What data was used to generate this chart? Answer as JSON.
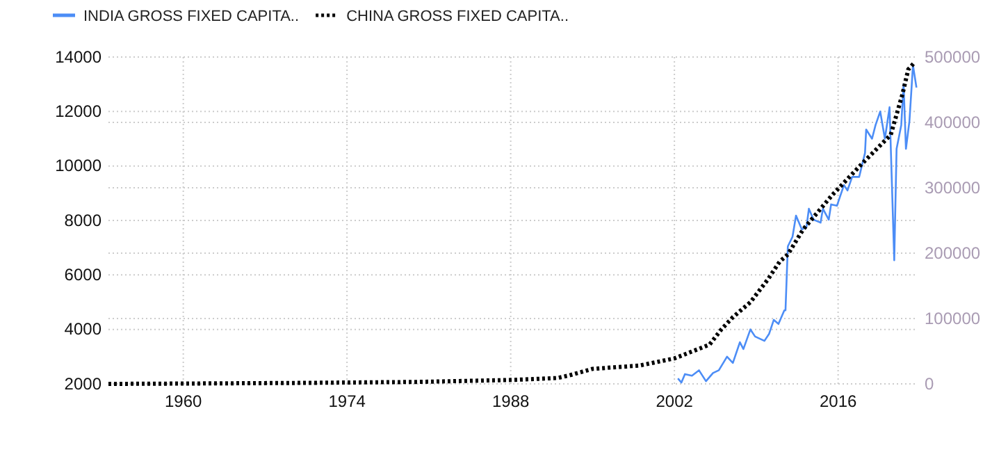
{
  "chart_data": {
    "type": "line",
    "xlim": [
      1953.6,
      2022.8
    ],
    "xticks": [
      1960,
      1974,
      1988,
      2002,
      2016
    ],
    "ylim": [
      2000,
      14000
    ],
    "yticks": [
      2000,
      4000,
      6000,
      8000,
      10000,
      12000,
      14000
    ],
    "y2lim": [
      0,
      500000
    ],
    "y2ticks": [
      0,
      100000,
      200000,
      300000,
      400000,
      500000
    ],
    "grid": true,
    "legend": "top left",
    "series": [
      {
        "name": "INDIA GROSS FIXED CAPITA..",
        "color": "#4c8df6",
        "line_style": "solid",
        "x": [
          2002.3,
          2002.6,
          2002.9,
          2003.5,
          2004.1,
          2004.7,
          2005.3,
          2005.8,
          2006.5,
          2007.0,
          2007.6,
          2007.9,
          2008.5,
          2008.9,
          2009.7,
          2010.1,
          2010.5,
          2010.9,
          2011.4,
          2011.5,
          2011.7,
          2012.1,
          2012.4,
          2012.9,
          2013.3,
          2013.5,
          2013.9,
          2014.5,
          2014.7,
          2015.2,
          2015.4,
          2015.9,
          2016.5,
          2016.8,
          2017.2,
          2017.8,
          2018.3,
          2018.4,
          2018.9,
          2019.2,
          2019.6,
          2020.0,
          2020.4,
          2020.8,
          2021.0,
          2021.4,
          2021.6,
          2021.8,
          2022.1,
          2022.3,
          2022.4,
          2022.7
        ],
        "values": [
          2200,
          2050,
          2360,
          2300,
          2500,
          2100,
          2400,
          2500,
          3000,
          2770,
          3530,
          3280,
          4000,
          3740,
          3580,
          3840,
          4350,
          4200,
          4700,
          4700,
          7050,
          7400,
          8180,
          7670,
          7770,
          8430,
          8030,
          7920,
          8430,
          8030,
          8590,
          8540,
          9300,
          9100,
          9600,
          9600,
          10480,
          11340,
          11000,
          11500,
          12000,
          11000,
          12160,
          6540,
          10630,
          11500,
          13000,
          10630,
          11650,
          13000,
          13700,
          12880
        ]
      },
      {
        "name": "CHINA GROSS FIXED CAPITA..",
        "color": "#000000",
        "line_style": "dotted",
        "axis": "y2",
        "x": [
          1953.6,
          1960,
          1970,
          1980,
          1988,
          1992,
          1993,
          1995,
          1999,
          2002,
          2005,
          2006,
          2007,
          2008.5,
          2010,
          2011,
          2011.7,
          2013,
          2015.5,
          2018,
          2020.5,
          2021.5,
          2022,
          2022.5
        ],
        "values": [
          0,
          500,
          1500,
          3000,
          6000,
          9000,
          13000,
          23000,
          28000,
          39000,
          60000,
          83000,
          102000,
          125000,
          160000,
          187000,
          198000,
          236000,
          289000,
          336000,
          381000,
          443000,
          481000,
          491000
        ]
      }
    ]
  }
}
